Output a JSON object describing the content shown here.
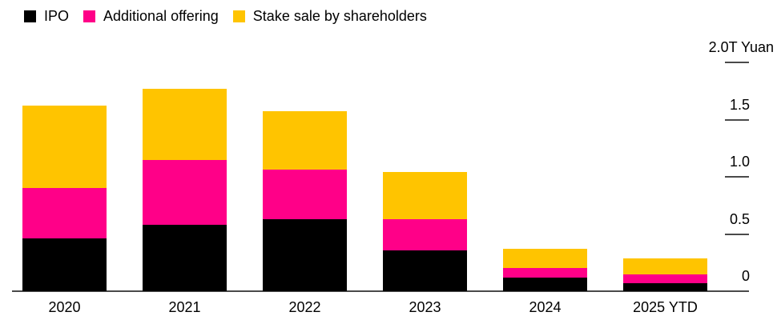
{
  "chart_data": {
    "type": "bar",
    "stacked": true,
    "title": "",
    "categories": [
      "2020",
      "2021",
      "2022",
      "2023",
      "2024",
      "2025 YTD"
    ],
    "series": [
      {
        "name": "IPO",
        "color": "#000000",
        "values": [
          0.46,
          0.58,
          0.63,
          0.36,
          0.12,
          0.07
        ]
      },
      {
        "name": "Additional offering",
        "color": "#ff0088",
        "values": [
          0.44,
          0.57,
          0.43,
          0.27,
          0.08,
          0.08
        ]
      },
      {
        "name": "Stake sale by shareholders",
        "color": "#ffc400",
        "values": [
          0.72,
          0.62,
          0.51,
          0.41,
          0.17,
          0.14
        ]
      }
    ],
    "totals": [
      1.62,
      1.77,
      1.57,
      1.04,
      0.37,
      0.29
    ],
    "y_axis": {
      "side": "right",
      "unit": "T Yuan",
      "max": 2.0,
      "min": 0,
      "ticks": [
        {
          "value": 2.0,
          "label": "2.0T Yuan"
        },
        {
          "value": 1.5,
          "label": "1.5"
        },
        {
          "value": 1.0,
          "label": "1.0"
        },
        {
          "value": 0.5,
          "label": "0.5"
        },
        {
          "value": 0,
          "label": "0"
        }
      ]
    },
    "legend_position": "top-left",
    "grid": false,
    "colors": {
      "background": "#ffffff",
      "axis_line": "#4a4a4a",
      "text": "#000000"
    }
  }
}
